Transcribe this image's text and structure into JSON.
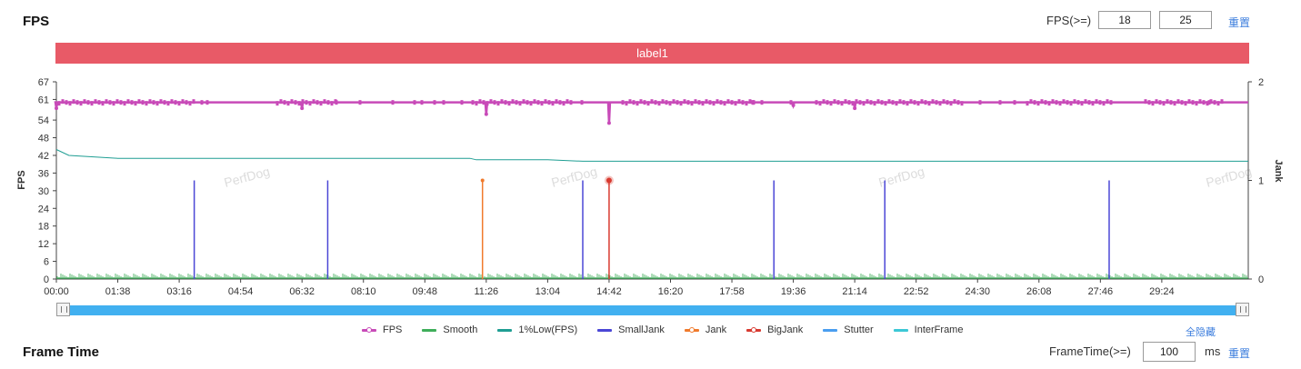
{
  "fps_section": {
    "title": "FPS",
    "threshold_label": "FPS(>=)",
    "threshold_low": "18",
    "threshold_high": "25",
    "reset_label": "重置",
    "label_bar": "label1",
    "hide_all_label": "全隐藏",
    "watermark": "PerfDog"
  },
  "frametime_section": {
    "title": "Frame Time",
    "threshold_label": "FrameTime(>=)",
    "threshold_value": "100",
    "unit": "ms",
    "reset_label": "重置"
  },
  "legend": [
    {
      "name": "FPS",
      "color": "#c84ab8",
      "marker": true
    },
    {
      "name": "Smooth",
      "color": "#3fae5a",
      "marker": false
    },
    {
      "name": "1%Low(FPS)",
      "color": "#1f9e93",
      "marker": false
    },
    {
      "name": "SmallJank",
      "color": "#4b47d6",
      "marker": false
    },
    {
      "name": "Jank",
      "color": "#f07a2c",
      "marker": true
    },
    {
      "name": "BigJank",
      "color": "#d83a30",
      "marker": true
    },
    {
      "name": "Stutter",
      "color": "#4a9ef0",
      "marker": false
    },
    {
      "name": "InterFrame",
      "color": "#3cc8d6",
      "marker": false
    }
  ],
  "chart_data": {
    "type": "line",
    "ylabel": "FPS",
    "y2label": "Jank",
    "ylim": [
      0,
      67
    ],
    "yticks": [
      0,
      6,
      12,
      18,
      24,
      30,
      36,
      42,
      48,
      54,
      61,
      67
    ],
    "y2lim": [
      0,
      2
    ],
    "y2ticks": [
      0,
      1,
      2
    ],
    "xlim_seconds": [
      0,
      1902
    ],
    "xticks": [
      "00:00",
      "01:38",
      "03:16",
      "04:54",
      "06:32",
      "08:10",
      "09:48",
      "11:26",
      "13:04",
      "14:42",
      "16:20",
      "17:58",
      "19:36",
      "21:14",
      "22:52",
      "24:30",
      "26:08",
      "27:46",
      "29:24"
    ],
    "series": [
      {
        "name": "FPS",
        "approx_value": 60,
        "dips": [
          {
            "time": "00:00",
            "value": 58
          },
          {
            "time": "06:32",
            "value": 58
          },
          {
            "time": "11:26",
            "value": 56
          },
          {
            "time": "14:42",
            "value": 53
          },
          {
            "time": "19:36",
            "value": 59
          },
          {
            "time": "21:14",
            "value": 58
          }
        ]
      },
      {
        "name": "1%Low(FPS)",
        "points": [
          {
            "time": "00:00",
            "value": 44
          },
          {
            "time": "00:20",
            "value": 42
          },
          {
            "time": "01:38",
            "value": 41
          },
          {
            "time": "03:16",
            "value": 41
          },
          {
            "time": "11:00",
            "value": 41
          },
          {
            "time": "11:10",
            "value": 40.5
          },
          {
            "time": "13:04",
            "value": 40.5
          },
          {
            "time": "14:00",
            "value": 40
          },
          {
            "time": "21:14",
            "value": 40
          },
          {
            "time": "31:42",
            "value": 40
          }
        ]
      },
      {
        "name": "SmallJank",
        "times": [
          "03:40",
          "07:13",
          "14:00",
          "19:05",
          "22:02",
          "28:00"
        ],
        "value": 1
      },
      {
        "name": "Jank",
        "times": [
          "11:20"
        ],
        "value": 1
      },
      {
        "name": "BigJank",
        "times": [
          "14:42"
        ],
        "value": 1
      },
      {
        "name": "Smooth",
        "approx_value": 2
      }
    ]
  }
}
